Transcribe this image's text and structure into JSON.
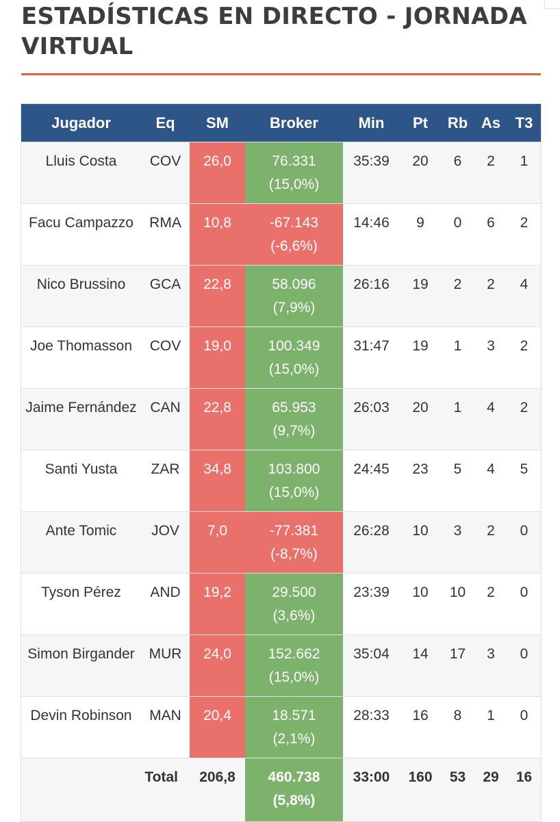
{
  "title": "ESTADÍSTICAS EN DIRECTO - JORNADA VIRTUAL",
  "colors": {
    "header_bg": "#2d5587",
    "title_rule": "#d9663a",
    "negative_red": "#e9706b",
    "positive_green": "#7cb26b"
  },
  "columns": [
    "Jugador",
    "Eq",
    "SM",
    "Broker",
    "Min",
    "Pt",
    "Rb",
    "As",
    "T3"
  ],
  "rows": [
    {
      "player": "Lluis Costa",
      "team": "COV",
      "sm": "26,0",
      "broker": "76.331",
      "broker_pct": "(15,0%)",
      "broker_sign": "pos",
      "min": "35:39",
      "pt": "20",
      "rb": "6",
      "as": "2",
      "t3": "1"
    },
    {
      "player": "Facu Campazzo",
      "team": "RMA",
      "sm": "10,8",
      "broker": "-67.143",
      "broker_pct": "(-6,6%)",
      "broker_sign": "neg",
      "min": "14:46",
      "pt": "9",
      "rb": "0",
      "as": "6",
      "t3": "2"
    },
    {
      "player": "Nico Brussino",
      "team": "GCA",
      "sm": "22,8",
      "broker": "58.096",
      "broker_pct": "(7,9%)",
      "broker_sign": "pos",
      "min": "26:16",
      "pt": "19",
      "rb": "2",
      "as": "2",
      "t3": "4"
    },
    {
      "player": "Joe Thomasson",
      "team": "COV",
      "sm": "19,0",
      "broker": "100.349",
      "broker_pct": "(15,0%)",
      "broker_sign": "pos",
      "min": "31:47",
      "pt": "19",
      "rb": "1",
      "as": "3",
      "t3": "2"
    },
    {
      "player": "Jaime Fernández",
      "team": "CAN",
      "sm": "22,8",
      "broker": "65.953",
      "broker_pct": "(9,7%)",
      "broker_sign": "pos",
      "min": "26:03",
      "pt": "20",
      "rb": "1",
      "as": "4",
      "t3": "2"
    },
    {
      "player": "Santi Yusta",
      "team": "ZAR",
      "sm": "34,8",
      "broker": "103.800",
      "broker_pct": "(15,0%)",
      "broker_sign": "pos",
      "min": "24:45",
      "pt": "23",
      "rb": "5",
      "as": "4",
      "t3": "5"
    },
    {
      "player": "Ante Tomic",
      "team": "JOV",
      "sm": "7,0",
      "broker": "-77.381",
      "broker_pct": "(-8,7%)",
      "broker_sign": "neg",
      "min": "26:28",
      "pt": "10",
      "rb": "3",
      "as": "2",
      "t3": "0"
    },
    {
      "player": "Tyson Pérez",
      "team": "AND",
      "sm": "19,2",
      "broker": "29.500",
      "broker_pct": "(3,6%)",
      "broker_sign": "pos",
      "min": "23:39",
      "pt": "10",
      "rb": "10",
      "as": "2",
      "t3": "0"
    },
    {
      "player": "Simon Birgander",
      "team": "MUR",
      "sm": "24,0",
      "broker": "152.662",
      "broker_pct": "(15,0%)",
      "broker_sign": "pos",
      "min": "35:04",
      "pt": "14",
      "rb": "17",
      "as": "3",
      "t3": "0"
    },
    {
      "player": "Devin Robinson",
      "team": "MAN",
      "sm": "20,4",
      "broker": "18.571",
      "broker_pct": "(2,1%)",
      "broker_sign": "pos",
      "min": "28:33",
      "pt": "16",
      "rb": "8",
      "as": "1",
      "t3": "0"
    }
  ],
  "total": {
    "label": "Total",
    "sm": "206,8",
    "broker": "460.738",
    "broker_pct": "(5,8%)",
    "min": "33:00",
    "pt": "160",
    "rb": "53",
    "as": "29",
    "t3": "16"
  }
}
